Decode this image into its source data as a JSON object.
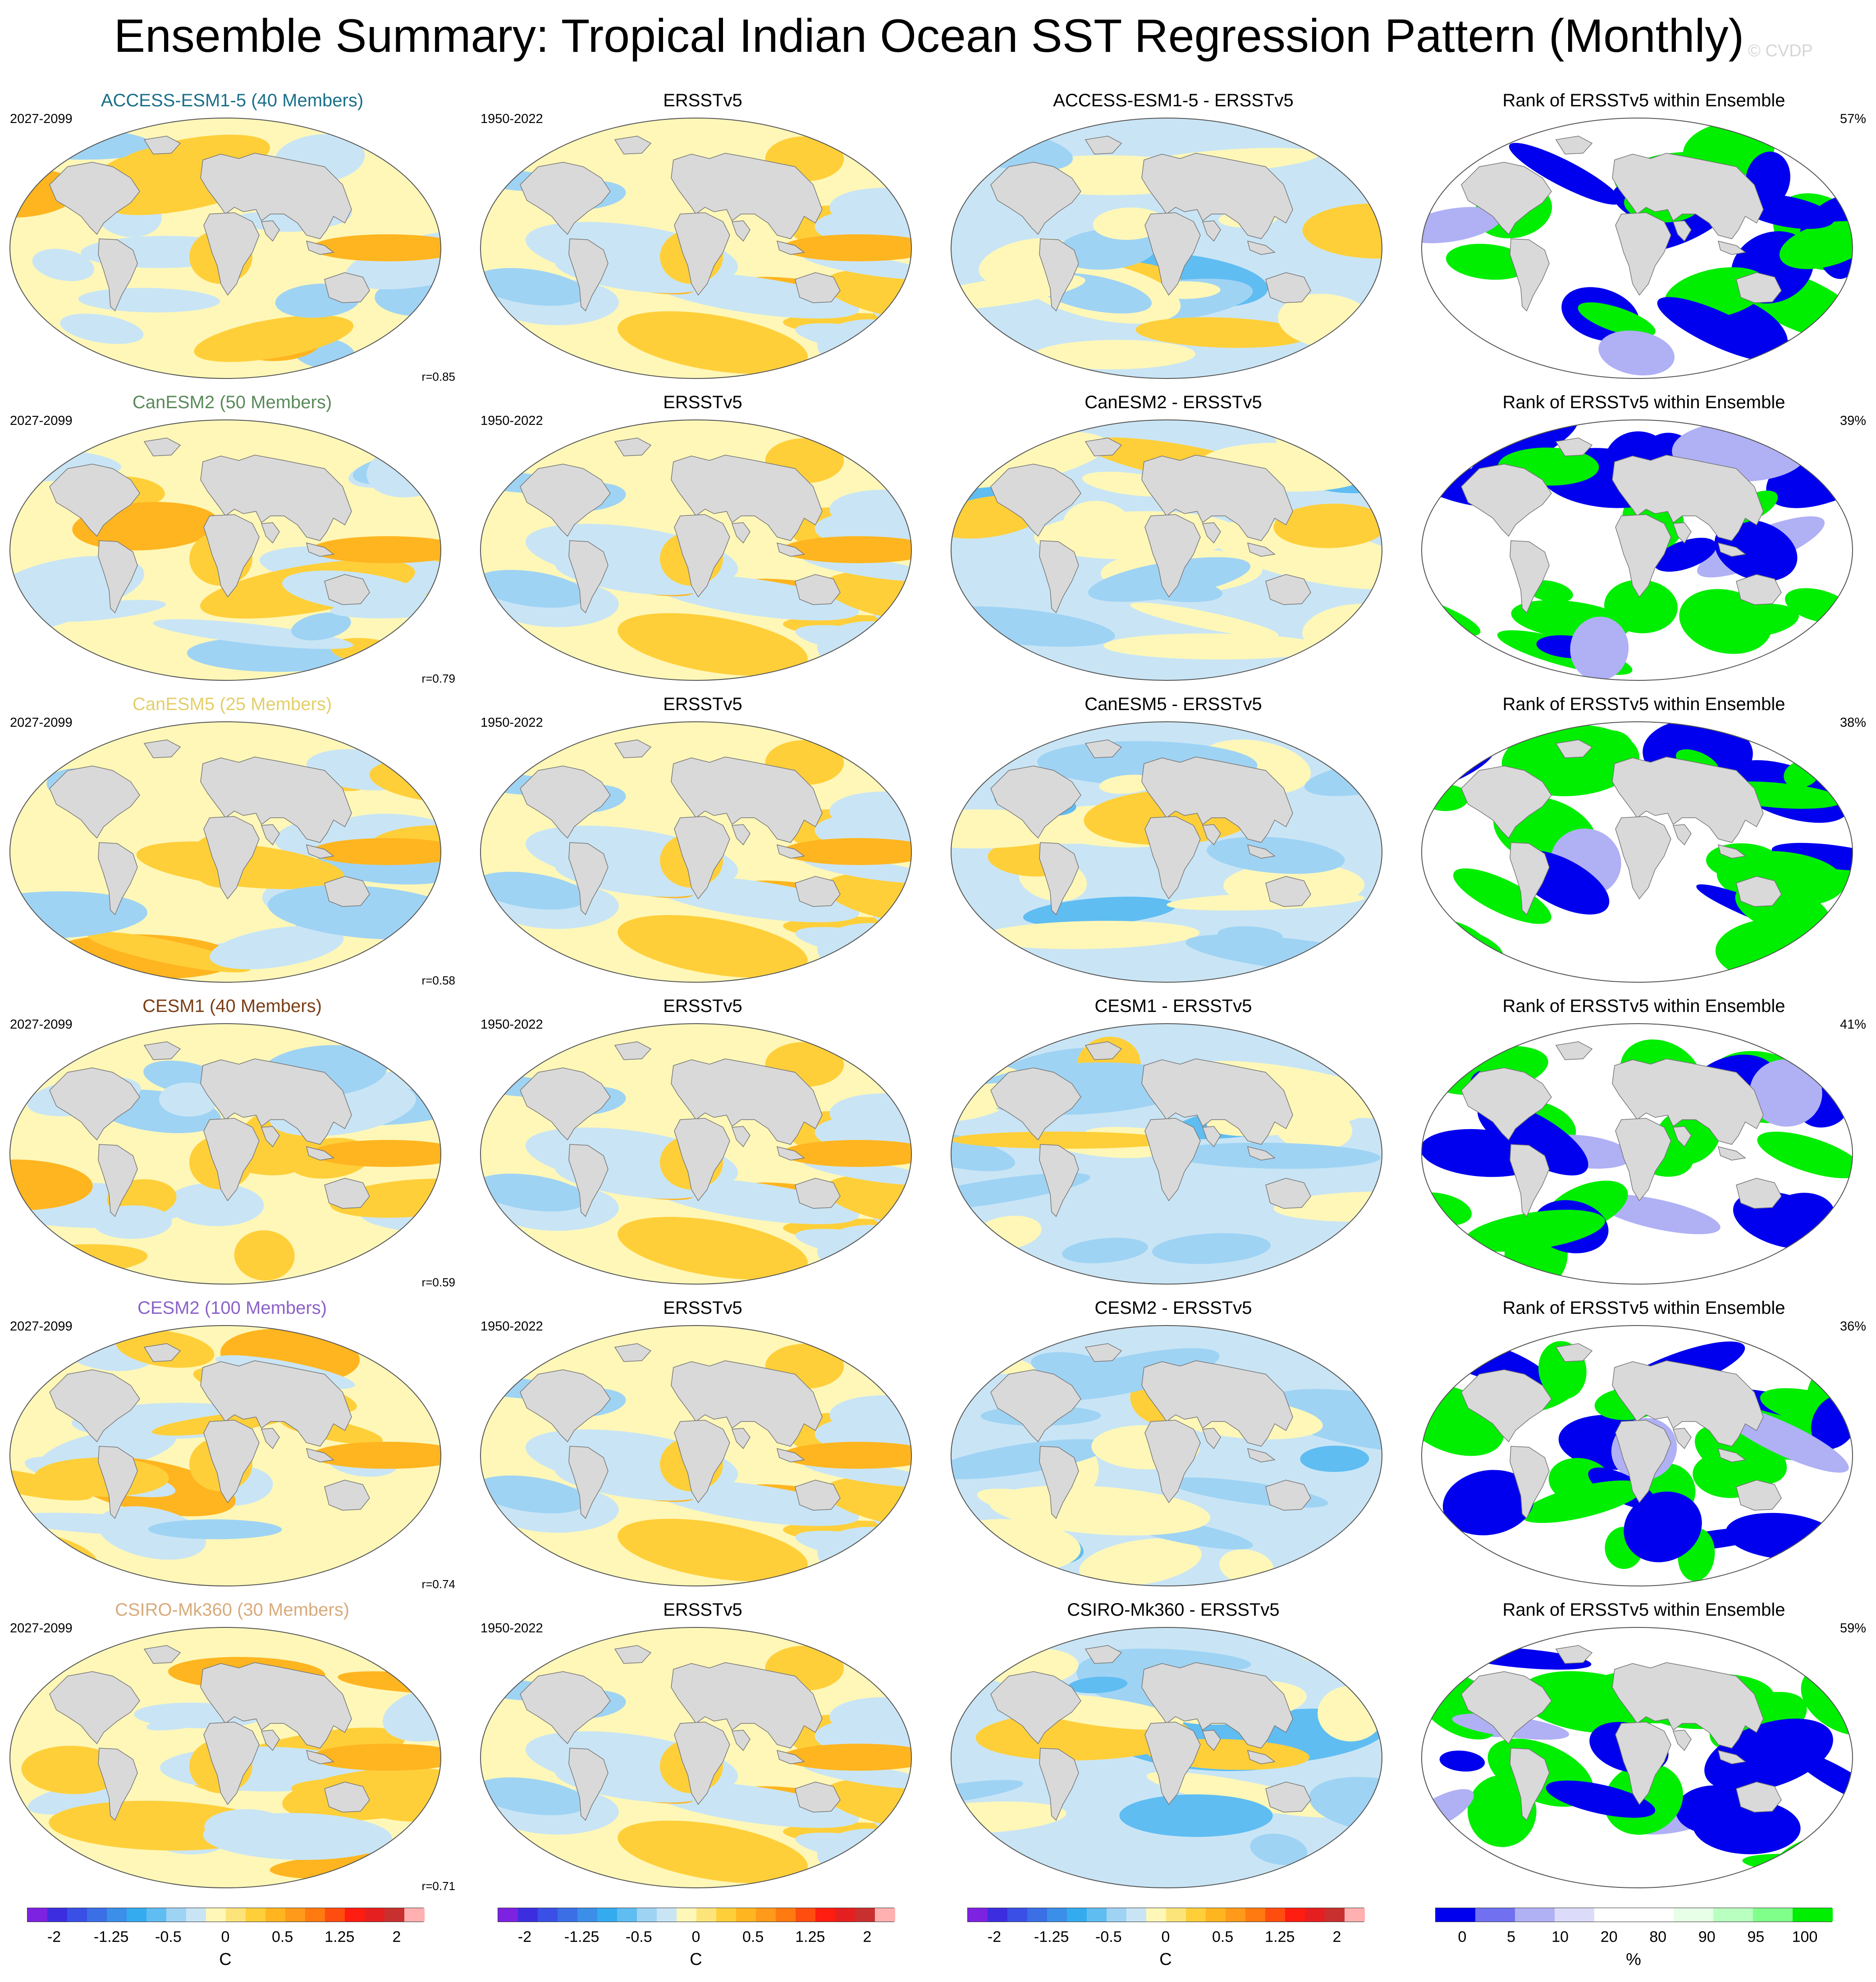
{
  "title": "Ensemble Summary: Tropical Indian Ocean SST Regression Pattern (Monthly)",
  "credit": "© CVDP",
  "columns": {
    "obs_title": "ERSSTv5",
    "obs_period": "1950-2022",
    "model_period": "2027-2099",
    "rank_title": "Rank of ERSSTv5 within Ensemble"
  },
  "rows": [
    {
      "model": "ACCESS-ESM1-5 (40 Members)",
      "model_color": "#1a6f8a",
      "corr": "r=0.85",
      "diff_title": "ACCESS-ESM1-5 - ERSSTv5",
      "rank_pct": "57%"
    },
    {
      "model": "CanESM2 (50 Members)",
      "model_color": "#5a8a5a",
      "corr": "r=0.79",
      "diff_title": "CanESM2 - ERSSTv5",
      "rank_pct": "39%"
    },
    {
      "model": "CanESM5 (25 Members)",
      "model_color": "#e3cf6a",
      "corr": "r=0.58",
      "diff_title": "CanESM5 - ERSSTv5",
      "rank_pct": "38%"
    },
    {
      "model": "CESM1 (40 Members)",
      "model_color": "#7a3e16",
      "corr": "r=0.59",
      "diff_title": "CESM1 - ERSSTv5",
      "rank_pct": "41%"
    },
    {
      "model": "CESM2 (100 Members)",
      "model_color": "#8b62c8",
      "corr": "r=0.74",
      "diff_title": "CESM2 - ERSSTv5",
      "rank_pct": "36%"
    },
    {
      "model": "CSIRO-Mk360 (30 Members)",
      "model_color": "#d8ab7c",
      "corr": "r=0.71",
      "diff_title": "CSIRO-Mk360 - ERSSTv5",
      "rank_pct": "59%"
    }
  ],
  "colorbars": {
    "sst": {
      "colors": [
        "#7c22e0",
        "#3c2ee0",
        "#3a4fe6",
        "#3a6fe6",
        "#3b8fe8",
        "#35abef",
        "#5fbdf2",
        "#9fd3f4",
        "#c9e5f5",
        "#fef7b8",
        "#fde47a",
        "#ffcf3a",
        "#ffb520",
        "#ff9a1a",
        "#ff7a10",
        "#ff4d10",
        "#ff1c10",
        "#e51f1f",
        "#c8302f",
        "#ffb0b0"
      ],
      "ticks": [
        "-2",
        "-1.25",
        "-0.5",
        "0",
        "0.5",
        "1.25",
        "2"
      ],
      "unit": "C"
    },
    "rank": {
      "colors": [
        "#0000ee",
        "#7070f0",
        "#b0b0f5",
        "#dcdcfa",
        "#ffffff",
        "#ffffff",
        "#e6ffe6",
        "#b8ffc0",
        "#80ff8a",
        "#00ee00"
      ],
      "ticks": [
        "0",
        "5",
        "10",
        "20",
        "80",
        "90",
        "95",
        "100"
      ],
      "unit": "%"
    }
  }
}
